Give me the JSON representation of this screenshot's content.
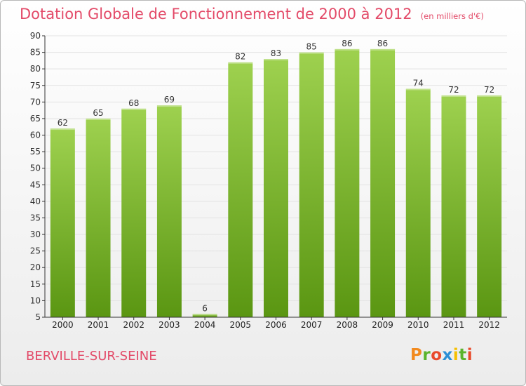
{
  "header": {
    "title": "Dotation Globale de Fonctionnement de 2000 à 2012",
    "unit": "(en milliers d'€)"
  },
  "footer": {
    "commune": "BERVILLE-SUR-SEINE",
    "logo_letters": [
      "P",
      "r",
      "o",
      "x",
      "i",
      "t",
      "i"
    ],
    "logo_colors": [
      "#f28a1e",
      "#5ab42c",
      "#e94a2a",
      "#2b8fd6",
      "#f5c000",
      "#5ab42c",
      "#e94a2a"
    ]
  },
  "chart_data": {
    "type": "bar",
    "title": "Dotation Globale de Fonctionnement de 2000 à 2012",
    "categories": [
      "2000",
      "2001",
      "2002",
      "2003",
      "2004",
      "2005",
      "2006",
      "2007",
      "2008",
      "2009",
      "2010",
      "2011",
      "2012"
    ],
    "values": [
      62,
      65,
      68,
      69,
      6,
      82,
      83,
      85,
      86,
      86,
      74,
      72,
      72
    ],
    "data_labels": [
      "62",
      "65",
      "68",
      "69",
      "6",
      "82",
      "83",
      "85",
      "86",
      "86",
      "74",
      "72",
      "72"
    ],
    "ylim": [
      5,
      90
    ],
    "yticks": [
      "5",
      "10",
      "15",
      "20",
      "25",
      "30",
      "35",
      "40",
      "45",
      "50",
      "55",
      "60",
      "65",
      "70",
      "75",
      "80",
      "85",
      "90"
    ],
    "grid": true,
    "legend": "none",
    "colors": {
      "bar_top": "#9ed14f",
      "bar_bottom": "#5a9612",
      "grid": "#e3e3e3",
      "axis": "#333333",
      "title": "#e34a68"
    }
  }
}
